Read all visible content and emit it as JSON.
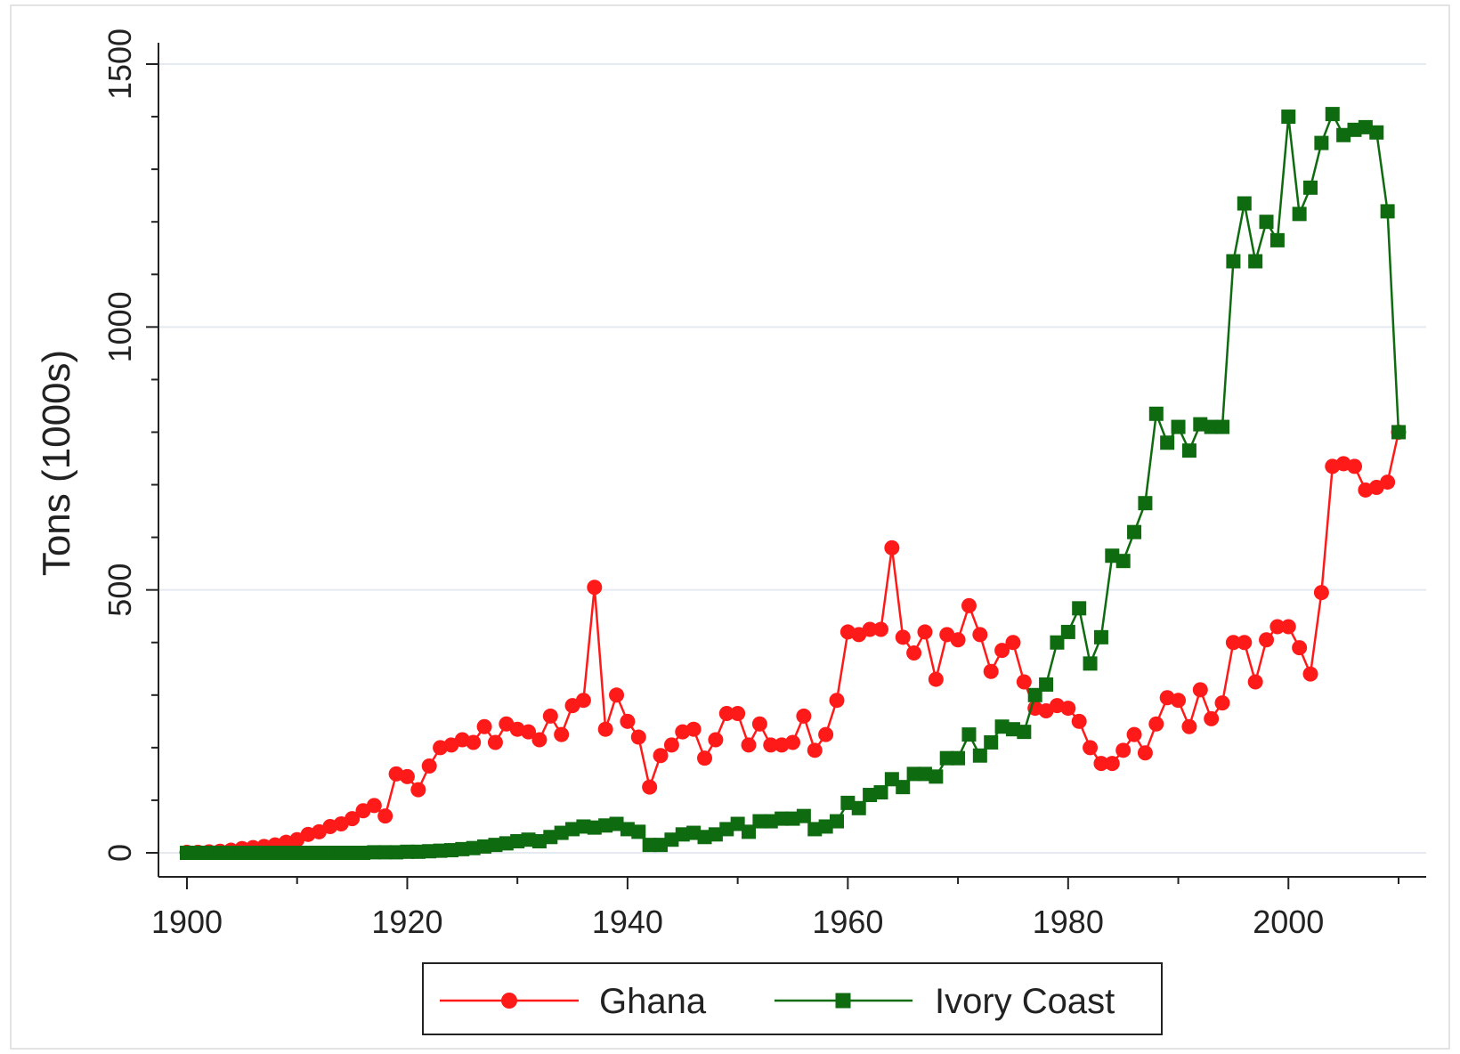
{
  "chart_data": {
    "type": "line",
    "title": "",
    "xlabel": "",
    "ylabel": "Tons (1000s)",
    "xlim": [
      1900,
      2011
    ],
    "ylim": [
      0,
      1500
    ],
    "xticks": [
      1900,
      1920,
      1940,
      1960,
      1980,
      2000
    ],
    "xtick_labels": [
      "1900",
      "1920",
      "1940",
      "1960",
      "1980",
      "2000"
    ],
    "yticks": [
      0,
      500,
      1000,
      1500
    ],
    "ytick_labels": [
      "0",
      "500",
      "1000",
      "1500"
    ],
    "grid": "horizontal",
    "legend_position": "bottom",
    "series": [
      {
        "name": "Ghana",
        "color": "#ff1a1a",
        "marker": "circle",
        "x": [
          1900,
          1901,
          1902,
          1903,
          1904,
          1905,
          1906,
          1907,
          1908,
          1909,
          1910,
          1911,
          1912,
          1913,
          1914,
          1915,
          1916,
          1917,
          1918,
          1919,
          1920,
          1921,
          1922,
          1923,
          1924,
          1925,
          1926,
          1927,
          1928,
          1929,
          1930,
          1931,
          1932,
          1933,
          1934,
          1935,
          1936,
          1937,
          1938,
          1939,
          1940,
          1941,
          1942,
          1943,
          1944,
          1945,
          1946,
          1947,
          1948,
          1949,
          1950,
          1951,
          1952,
          1953,
          1954,
          1955,
          1956,
          1957,
          1958,
          1959,
          1960,
          1961,
          1962,
          1963,
          1964,
          1965,
          1966,
          1967,
          1968,
          1969,
          1970,
          1971,
          1972,
          1973,
          1974,
          1975,
          1976,
          1977,
          1978,
          1979,
          1980,
          1981,
          1982,
          1983,
          1984,
          1985,
          1986,
          1987,
          1988,
          1989,
          1990,
          1991,
          1992,
          1993,
          1994,
          1995,
          1996,
          1997,
          1998,
          1999,
          2000,
          2001,
          2002,
          2003,
          2004,
          2005,
          2006,
          2007,
          2008,
          2009,
          2010
        ],
        "values": [
          1,
          1,
          2,
          3,
          5,
          8,
          10,
          12,
          15,
          20,
          25,
          35,
          40,
          50,
          55,
          65,
          80,
          90,
          70,
          150,
          145,
          120,
          165,
          200,
          205,
          215,
          210,
          240,
          210,
          245,
          235,
          230,
          215,
          260,
          225,
          280,
          290,
          505,
          235,
          300,
          250,
          220,
          125,
          185,
          205,
          230,
          235,
          180,
          215,
          265,
          265,
          205,
          245,
          205,
          205,
          210,
          260,
          195,
          225,
          290,
          420,
          415,
          425,
          425,
          580,
          410,
          380,
          420,
          330,
          415,
          405,
          470,
          415,
          345,
          385,
          400,
          325,
          275,
          270,
          280,
          275,
          250,
          200,
          170,
          170,
          195,
          225,
          190,
          245,
          295,
          290,
          240,
          310,
          255,
          285,
          400,
          400,
          325,
          405,
          430,
          430,
          390,
          340,
          495,
          735,
          740,
          735,
          690,
          695,
          705,
          800
        ]
      },
      {
        "name": "Ivory Coast",
        "color": "#0f6b0f",
        "marker": "square",
        "x": [
          1900,
          1901,
          1902,
          1903,
          1904,
          1905,
          1906,
          1907,
          1908,
          1909,
          1910,
          1911,
          1912,
          1913,
          1914,
          1915,
          1916,
          1917,
          1918,
          1919,
          1920,
          1921,
          1922,
          1923,
          1924,
          1925,
          1926,
          1927,
          1928,
          1929,
          1930,
          1931,
          1932,
          1933,
          1934,
          1935,
          1936,
          1937,
          1938,
          1939,
          1940,
          1941,
          1942,
          1943,
          1944,
          1945,
          1946,
          1947,
          1948,
          1949,
          1950,
          1951,
          1952,
          1953,
          1954,
          1955,
          1956,
          1957,
          1958,
          1959,
          1960,
          1961,
          1962,
          1963,
          1964,
          1965,
          1966,
          1967,
          1968,
          1969,
          1970,
          1971,
          1972,
          1973,
          1974,
          1975,
          1976,
          1977,
          1978,
          1979,
          1980,
          1981,
          1982,
          1983,
          1984,
          1985,
          1986,
          1987,
          1988,
          1989,
          1990,
          1991,
          1992,
          1993,
          1994,
          1995,
          1996,
          1997,
          1998,
          1999,
          2000,
          2001,
          2002,
          2003,
          2004,
          2005,
          2006,
          2007,
          2008,
          2009,
          2010
        ],
        "values": [
          0,
          0,
          0,
          0,
          0,
          0,
          0,
          0,
          0,
          0,
          0,
          0,
          0,
          0,
          0,
          0,
          0,
          1,
          1,
          1,
          2,
          2,
          3,
          4,
          5,
          7,
          9,
          12,
          15,
          18,
          22,
          25,
          22,
          30,
          38,
          45,
          50,
          48,
          52,
          55,
          45,
          40,
          15,
          15,
          25,
          35,
          38,
          30,
          35,
          45,
          55,
          40,
          60,
          60,
          65,
          65,
          70,
          45,
          50,
          60,
          95,
          85,
          110,
          115,
          140,
          125,
          150,
          150,
          145,
          180,
          180,
          225,
          185,
          210,
          240,
          235,
          230,
          300,
          320,
          400,
          420,
          465,
          360,
          410,
          565,
          555,
          610,
          665,
          835,
          780,
          810,
          765,
          815,
          810,
          810,
          1125,
          1235,
          1125,
          1200,
          1165,
          1400,
          1215,
          1265,
          1350,
          1405,
          1365,
          1375,
          1380,
          1370,
          1220,
          800
        ]
      }
    ]
  }
}
